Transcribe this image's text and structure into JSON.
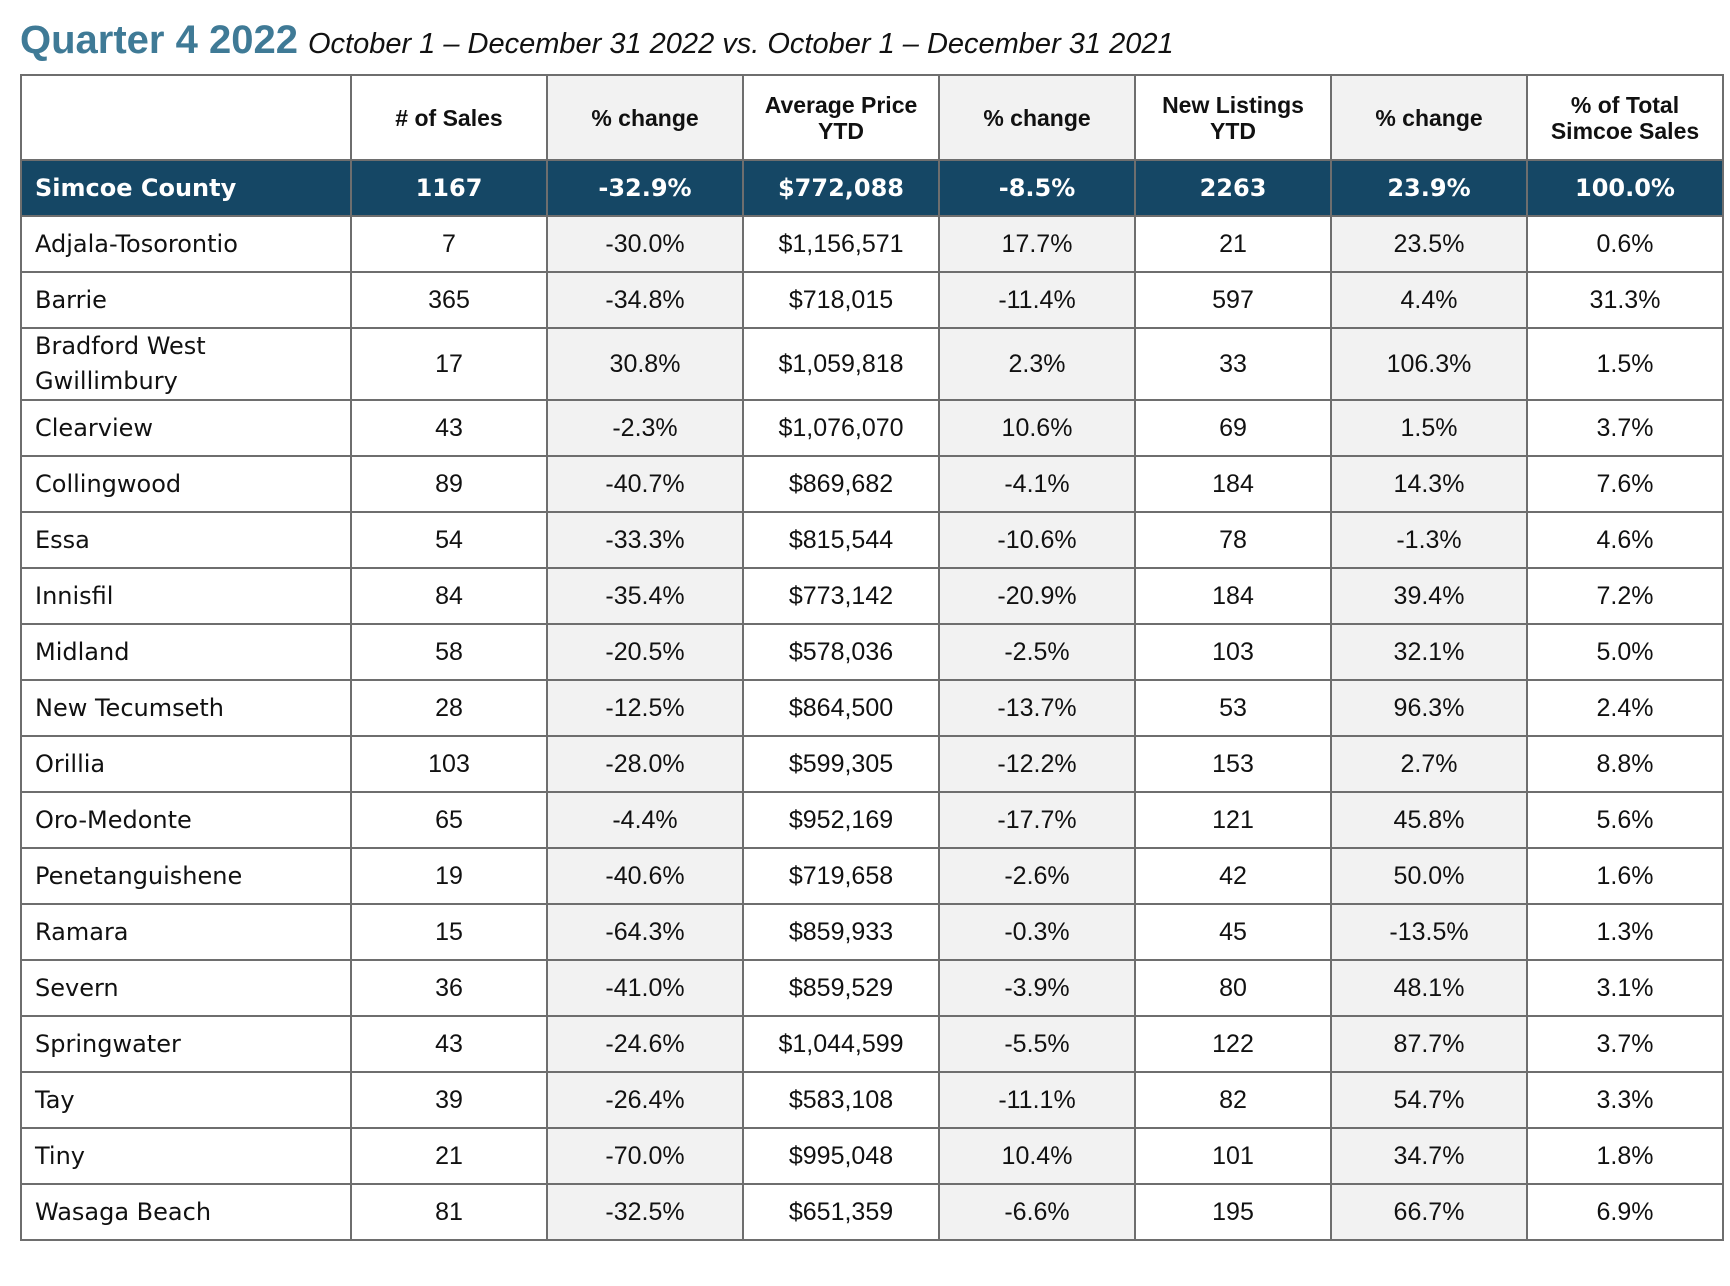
{
  "title": {
    "main": "Quarter 4 2022",
    "subtitle": "October 1 – December 31 2022 vs. October 1 – December 31 2021"
  },
  "table": {
    "headers": [
      "",
      "# of Sales",
      "% change",
      "Average Price YTD",
      "% change",
      "New Listings YTD",
      "% change",
      "% of Total Simcoe Sales"
    ],
    "summary": {
      "name": "Simcoe County",
      "sales": "1167",
      "sales_change": "-32.9%",
      "avg_price": "$772,088",
      "price_change": "-8.5%",
      "new_listings": "2263",
      "listings_change": "23.9%",
      "pct_total": "100.0%"
    },
    "rows": [
      {
        "name": "Adjala-Tosorontio",
        "sales": "7",
        "sales_change": "-30.0%",
        "avg_price": "$1,156,571",
        "price_change": "17.7%",
        "new_listings": "21",
        "listings_change": "23.5%",
        "pct_total": "0.6%"
      },
      {
        "name": "Barrie",
        "sales": "365",
        "sales_change": "-34.8%",
        "avg_price": "$718,015",
        "price_change": "-11.4%",
        "new_listings": "597",
        "listings_change": "4.4%",
        "pct_total": "31.3%"
      },
      {
        "name": "Bradford West Gwillimbury",
        "sales": "17",
        "sales_change": "30.8%",
        "avg_price": "$1,059,818",
        "price_change": "2.3%",
        "new_listings": "33",
        "listings_change": "106.3%",
        "pct_total": "1.5%"
      },
      {
        "name": "Clearview",
        "sales": "43",
        "sales_change": "-2.3%",
        "avg_price": "$1,076,070",
        "price_change": "10.6%",
        "new_listings": "69",
        "listings_change": "1.5%",
        "pct_total": "3.7%"
      },
      {
        "name": "Collingwood",
        "sales": "89",
        "sales_change": "-40.7%",
        "avg_price": "$869,682",
        "price_change": "-4.1%",
        "new_listings": "184",
        "listings_change": "14.3%",
        "pct_total": "7.6%"
      },
      {
        "name": "Essa",
        "sales": "54",
        "sales_change": "-33.3%",
        "avg_price": "$815,544",
        "price_change": "-10.6%",
        "new_listings": "78",
        "listings_change": "-1.3%",
        "pct_total": "4.6%"
      },
      {
        "name": "Innisfil",
        "sales": "84",
        "sales_change": "-35.4%",
        "avg_price": "$773,142",
        "price_change": "-20.9%",
        "new_listings": "184",
        "listings_change": "39.4%",
        "pct_total": "7.2%"
      },
      {
        "name": "Midland",
        "sales": "58",
        "sales_change": "-20.5%",
        "avg_price": "$578,036",
        "price_change": "-2.5%",
        "new_listings": "103",
        "listings_change": "32.1%",
        "pct_total": "5.0%"
      },
      {
        "name": "New Tecumseth",
        "sales": "28",
        "sales_change": "-12.5%",
        "avg_price": "$864,500",
        "price_change": "-13.7%",
        "new_listings": "53",
        "listings_change": "96.3%",
        "pct_total": "2.4%"
      },
      {
        "name": "Orillia",
        "sales": "103",
        "sales_change": "-28.0%",
        "avg_price": "$599,305",
        "price_change": "-12.2%",
        "new_listings": "153",
        "listings_change": "2.7%",
        "pct_total": "8.8%"
      },
      {
        "name": "Oro-Medonte",
        "sales": "65",
        "sales_change": "-4.4%",
        "avg_price": "$952,169",
        "price_change": "-17.7%",
        "new_listings": "121",
        "listings_change": "45.8%",
        "pct_total": "5.6%"
      },
      {
        "name": "Penetanguishene",
        "sales": "19",
        "sales_change": "-40.6%",
        "avg_price": "$719,658",
        "price_change": "-2.6%",
        "new_listings": "42",
        "listings_change": "50.0%",
        "pct_total": "1.6%"
      },
      {
        "name": "Ramara",
        "sales": "15",
        "sales_change": "-64.3%",
        "avg_price": "$859,933",
        "price_change": "-0.3%",
        "new_listings": "45",
        "listings_change": "-13.5%",
        "pct_total": "1.3%"
      },
      {
        "name": "Severn",
        "sales": "36",
        "sales_change": "-41.0%",
        "avg_price": "$859,529",
        "price_change": "-3.9%",
        "new_listings": "80",
        "listings_change": "48.1%",
        "pct_total": "3.1%"
      },
      {
        "name": "Springwater",
        "sales": "43",
        "sales_change": "-24.6%",
        "avg_price": "$1,044,599",
        "price_change": "-5.5%",
        "new_listings": "122",
        "listings_change": "87.7%",
        "pct_total": "3.7%"
      },
      {
        "name": "Tay",
        "sales": "39",
        "sales_change": "-26.4%",
        "avg_price": "$583,108",
        "price_change": "-11.1%",
        "new_listings": "82",
        "listings_change": "54.7%",
        "pct_total": "3.3%"
      },
      {
        "name": "Tiny",
        "sales": "21",
        "sales_change": "-70.0%",
        "avg_price": "$995,048",
        "price_change": "10.4%",
        "new_listings": "101",
        "listings_change": "34.7%",
        "pct_total": "1.8%"
      },
      {
        "name": "Wasaga Beach",
        "sales": "81",
        "sales_change": "-32.5%",
        "avg_price": "$651,359",
        "price_change": "-6.6%",
        "new_listings": "195",
        "listings_change": "66.7%",
        "pct_total": "6.9%"
      }
    ]
  },
  "colors": {
    "title": "#3f7a96",
    "summary_row": "#154765",
    "alt_column": "#f2f2f2",
    "border": "#6e6e6e"
  }
}
